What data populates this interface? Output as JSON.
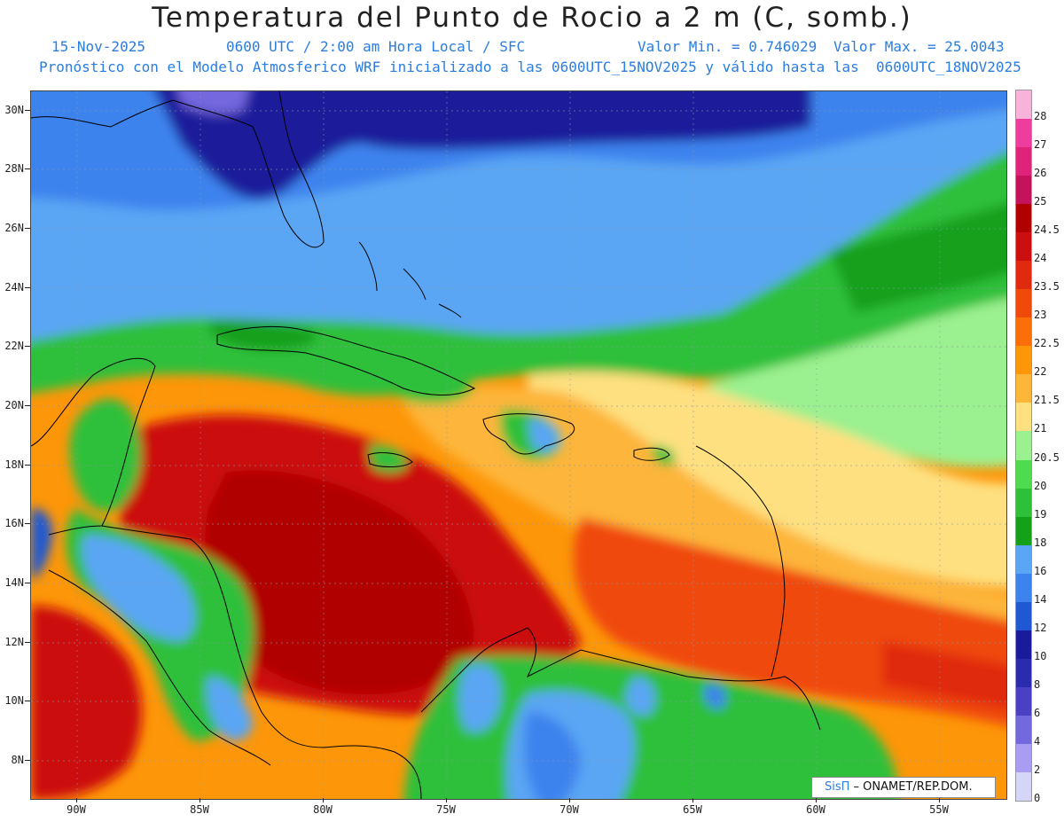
{
  "header": {
    "title": "Temperatura del Punto de Rocio a 2 m (C, somb.)",
    "date": "15-Nov-2025",
    "time_info": "0600 UTC / 2:00 am Hora Local / SFC",
    "min_value": "Valor Min. = 0.746029",
    "max_value": "Valor Max. = 25.0043",
    "forecast_line": "Pronóstico con el Modelo Atmosferico WRF inicializado a las 0600UTC_15NOV2025 y válido hasta las  0600UTC_18NOV2025"
  },
  "map": {
    "lat_labels": [
      "30N",
      "28N",
      "26N",
      "24N",
      "22N",
      "20N",
      "18N",
      "16N",
      "14N",
      "12N",
      "10N",
      "8N"
    ],
    "lon_labels": [
      "90W",
      "85W",
      "80W",
      "75W",
      "70W",
      "65W",
      "60W",
      "55W"
    ],
    "credit_logo": "SisΠ",
    "credit_text": " – ONAMET/REP.DOM."
  },
  "legend": {
    "levels": [
      "28",
      "27",
      "26",
      "25",
      "24.5",
      "24",
      "23.5",
      "23",
      "22.5",
      "22",
      "21.5",
      "21",
      "20.5",
      "20",
      "19",
      "18",
      "16",
      "14",
      "12",
      "10",
      "8",
      "6",
      "4",
      "2",
      "0"
    ],
    "colors": [
      "#f7b3d9",
      "#ee3d9f",
      "#e0237a",
      "#c4135a",
      "#b00000",
      "#cc0e0e",
      "#e02a10",
      "#f04a0a",
      "#fb6e08",
      "#fd9608",
      "#fdb53a",
      "#fee080",
      "#9bf08f",
      "#4edc4e",
      "#2fc03a",
      "#15a01a",
      "#5aa6f4",
      "#3d83ee",
      "#1f58d2",
      "#1a1a9b",
      "#2b2bae",
      "#4b40c4",
      "#7468df",
      "#a89cf3",
      "#d6d4f7"
    ]
  }
}
